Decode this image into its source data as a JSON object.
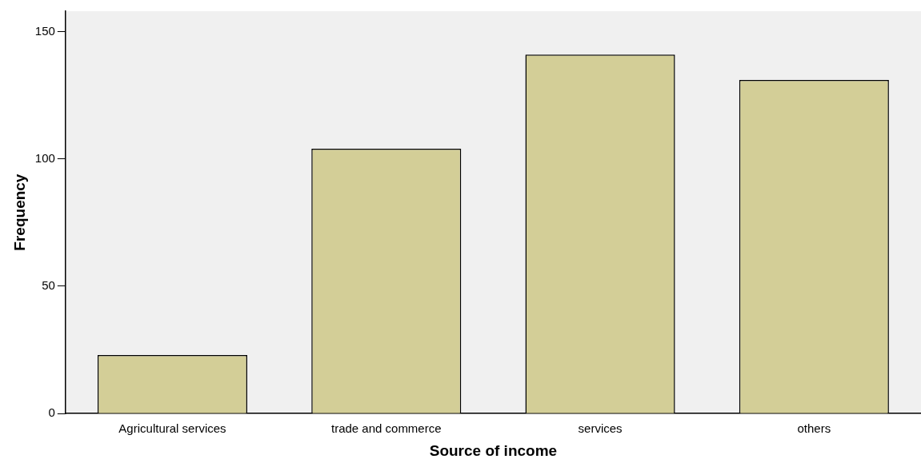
{
  "chart_data": {
    "type": "bar",
    "xlabel": "Source of income",
    "ylabel": "Frequency",
    "categories": [
      "Agricultural services",
      "trade and commerce",
      "services",
      "others"
    ],
    "values": [
      23,
      104,
      141,
      131
    ],
    "color": "#d3ce97",
    "ylim": [
      0,
      158
    ],
    "yticks": [
      0,
      50,
      100,
      150
    ],
    "grid": false,
    "legend": false
  }
}
